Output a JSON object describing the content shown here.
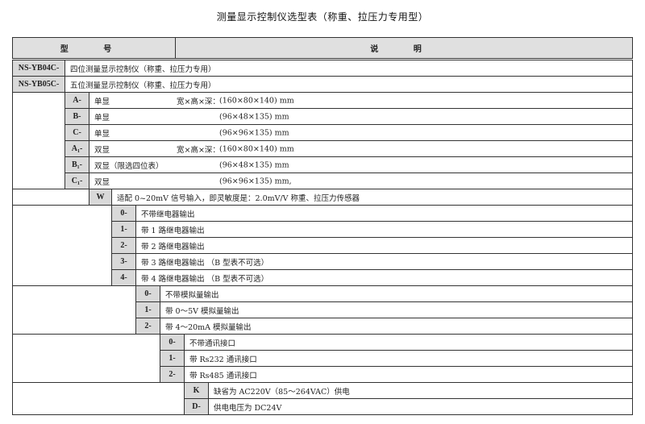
{
  "title": "测量显示控制仪选型表（称重、拉压力专用型）",
  "header": {
    "model": "型 号",
    "desc": "说 明"
  },
  "series": [
    {
      "code": "NS-YB04C-",
      "desc": "四位测量显示控制仪（称重、拉压力专用）"
    },
    {
      "code": "NS-YB05C-",
      "desc": "五位测量显示控制仪（称重、拉压力专用）"
    }
  ],
  "display": [
    {
      "code": "A-",
      "desc": "单显",
      "dims_label": "宽×高×深：",
      "dims": "(160×80×140) mm"
    },
    {
      "code": "B-",
      "desc": "单显",
      "dims_label": "",
      "dims": "(96×48×135) mm"
    },
    {
      "code": "C-",
      "desc": "单显",
      "dims_label": "",
      "dims": "(96×96×135) mm"
    },
    {
      "code": "A₁-",
      "desc": "双显",
      "dims_label": "宽×高×深：",
      "dims": "(160×80×140) mm"
    },
    {
      "code": "B₁-",
      "desc": "双显（限选四位表）",
      "dims_label": "",
      "dims": "(96×48×135) mm"
    },
    {
      "code": "C₁-",
      "desc": "双显",
      "dims_label": "",
      "dims": "(96×96×135) mm,"
    }
  ],
  "input": [
    {
      "code": "W",
      "desc": "适配 0~20mV 信号输入，即灵敏度是：2.0mV/V 称重、拉压力传感器"
    }
  ],
  "relay": [
    {
      "code": "0-",
      "desc": "不带继电器输出"
    },
    {
      "code": "1-",
      "desc": "带 1 路继电器输出"
    },
    {
      "code": "2-",
      "desc": "带 2 路继电器输出"
    },
    {
      "code": "3-",
      "desc": "带 3 路继电器输出 （B 型表不可选）"
    },
    {
      "code": "4-",
      "desc": "带 4 路继电器输出 （B 型表不可选）"
    }
  ],
  "analog": [
    {
      "code": "0-",
      "desc": "不带模拟量输出"
    },
    {
      "code": "1-",
      "desc": "带 0～5V 模拟量输出"
    },
    {
      "code": "2-",
      "desc": "带 4～20mA 模拟量输出"
    }
  ],
  "comm": [
    {
      "code": "0-",
      "desc": "不带通讯接口"
    },
    {
      "code": "1-",
      "desc": "带 Rs232 通讯接口"
    },
    {
      "code": "2-",
      "desc": "带 Rs485 通讯接口"
    }
  ],
  "power": [
    {
      "code": "K",
      "desc": "缺省为 AC220V（85～264VAC）供电"
    },
    {
      "code": "D-",
      "desc": "供电电压为 DC24V"
    }
  ]
}
